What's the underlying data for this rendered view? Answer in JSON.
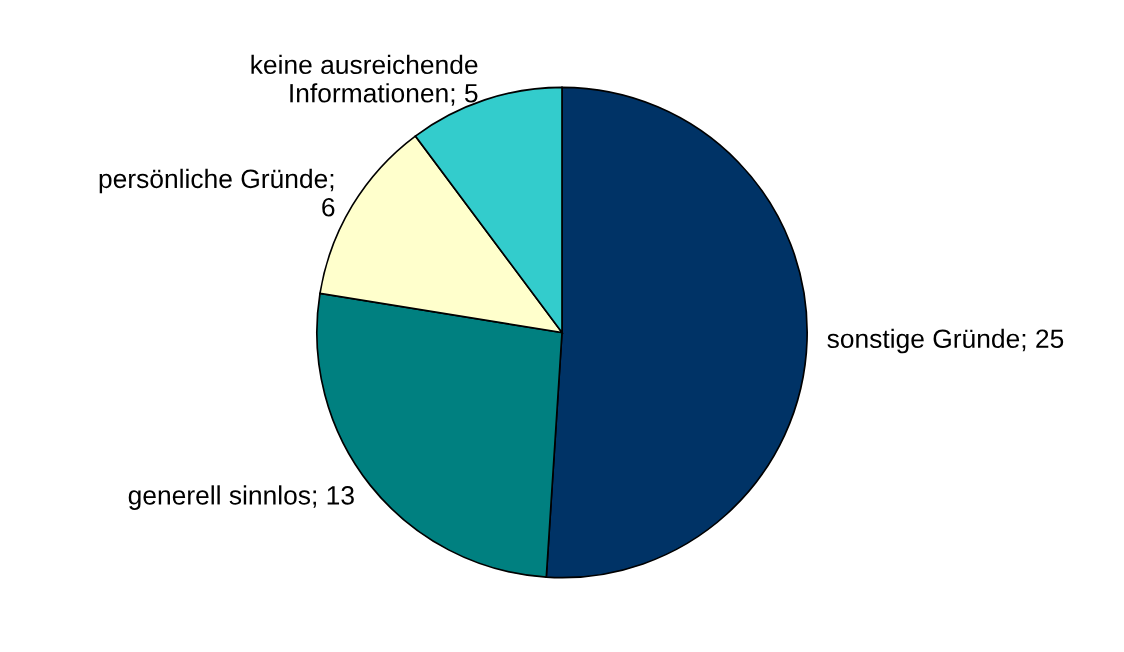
{
  "chart_data": {
    "type": "pie",
    "categories": [
      "sonstige Gründe; 25",
      "generell sinnlos; 13",
      "persönliche Gründe;\n6",
      "keine ausreichende\nInformationen; 5"
    ],
    "values": [
      25,
      13,
      6,
      5
    ],
    "colors": [
      "#003366",
      "#008080",
      "#ffffcc",
      "#33cccc"
    ]
  }
}
